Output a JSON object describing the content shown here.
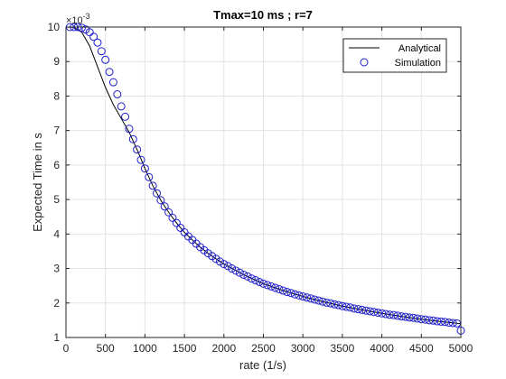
{
  "chart_data": {
    "type": "line",
    "title": "Tmax=10 ms ; r=7",
    "xlabel": "rate (1/s)",
    "ylabel": "Expected Time in s",
    "y_exponent_base": "×10",
    "y_exponent_power": "-3",
    "xlim": [
      0,
      5000
    ],
    "ylim": [
      1,
      10
    ],
    "x_ticks": [
      0,
      500,
      1000,
      1500,
      2000,
      2500,
      3000,
      3500,
      4000,
      4500,
      5000
    ],
    "y_ticks": [
      1,
      2,
      3,
      4,
      5,
      6,
      7,
      8,
      9,
      10
    ],
    "grid": true,
    "legend_position": "top-right",
    "series": [
      {
        "name": "Analytical",
        "kind": "line",
        "color": "#000000",
        "points": [
          [
            0,
            10.0
          ],
          [
            100,
            9.99
          ],
          [
            200,
            9.85
          ],
          [
            300,
            9.45
          ],
          [
            400,
            8.85
          ],
          [
            500,
            8.25
          ],
          [
            600,
            7.75
          ],
          [
            700,
            7.35
          ],
          [
            800,
            6.95
          ],
          [
            900,
            6.45
          ],
          [
            1000,
            5.9
          ],
          [
            1100,
            5.4
          ],
          [
            1200,
            4.98
          ],
          [
            1300,
            4.63
          ],
          [
            1400,
            4.32
          ],
          [
            1500,
            4.05
          ],
          [
            1600,
            3.83
          ],
          [
            1700,
            3.62
          ],
          [
            1800,
            3.44
          ],
          [
            1900,
            3.28
          ],
          [
            2000,
            3.13
          ],
          [
            2250,
            2.82
          ],
          [
            2500,
            2.56
          ],
          [
            2750,
            2.36
          ],
          [
            3000,
            2.19
          ],
          [
            3250,
            2.04
          ],
          [
            3500,
            1.91
          ],
          [
            3750,
            1.8
          ],
          [
            4000,
            1.7
          ],
          [
            4250,
            1.61
          ],
          [
            4500,
            1.53
          ],
          [
            4750,
            1.46
          ],
          [
            5000,
            1.4
          ]
        ]
      },
      {
        "name": "Simulation",
        "kind": "scatter",
        "color": "#1f1fcc",
        "points": [
          [
            50,
            10.0
          ],
          [
            100,
            10.0
          ],
          [
            150,
            10.0
          ],
          [
            200,
            9.98
          ],
          [
            250,
            9.93
          ],
          [
            300,
            9.85
          ],
          [
            350,
            9.72
          ],
          [
            400,
            9.55
          ],
          [
            450,
            9.3
          ],
          [
            500,
            9.05
          ],
          [
            550,
            8.7
          ],
          [
            600,
            8.4
          ],
          [
            650,
            8.05
          ],
          [
            700,
            7.7
          ],
          [
            750,
            7.4
          ],
          [
            800,
            7.05
          ],
          [
            850,
            6.75
          ],
          [
            900,
            6.45
          ],
          [
            950,
            6.15
          ],
          [
            1000,
            5.9
          ],
          [
            1050,
            5.65
          ],
          [
            1100,
            5.4
          ],
          [
            1150,
            5.18
          ],
          [
            1200,
            4.98
          ],
          [
            1250,
            4.8
          ],
          [
            1300,
            4.63
          ],
          [
            1350,
            4.47
          ],
          [
            1400,
            4.32
          ],
          [
            1450,
            4.18
          ],
          [
            1500,
            4.05
          ],
          [
            1550,
            3.93
          ],
          [
            1600,
            3.83
          ],
          [
            1650,
            3.72
          ],
          [
            1700,
            3.62
          ],
          [
            1750,
            3.53
          ],
          [
            1800,
            3.44
          ],
          [
            1850,
            3.36
          ],
          [
            1900,
            3.28
          ],
          [
            1950,
            3.2
          ],
          [
            2000,
            3.13
          ],
          [
            2050,
            3.07
          ],
          [
            2100,
            3.0
          ],
          [
            2150,
            2.94
          ],
          [
            2200,
            2.88
          ],
          [
            2250,
            2.82
          ],
          [
            2300,
            2.77
          ],
          [
            2350,
            2.71
          ],
          [
            2400,
            2.66
          ],
          [
            2450,
            2.61
          ],
          [
            2500,
            2.56
          ],
          [
            2550,
            2.52
          ],
          [
            2600,
            2.48
          ],
          [
            2650,
            2.44
          ],
          [
            2700,
            2.4
          ],
          [
            2750,
            2.36
          ],
          [
            2800,
            2.32
          ],
          [
            2850,
            2.29
          ],
          [
            2900,
            2.25
          ],
          [
            2950,
            2.22
          ],
          [
            3000,
            2.19
          ],
          [
            3050,
            2.16
          ],
          [
            3100,
            2.13
          ],
          [
            3150,
            2.1
          ],
          [
            3200,
            2.07
          ],
          [
            3250,
            2.04
          ],
          [
            3300,
            2.01
          ],
          [
            3350,
            1.99
          ],
          [
            3400,
            1.96
          ],
          [
            3450,
            1.94
          ],
          [
            3500,
            1.91
          ],
          [
            3550,
            1.89
          ],
          [
            3600,
            1.87
          ],
          [
            3650,
            1.84
          ],
          [
            3700,
            1.82
          ],
          [
            3750,
            1.8
          ],
          [
            3800,
            1.78
          ],
          [
            3850,
            1.76
          ],
          [
            3900,
            1.74
          ],
          [
            3950,
            1.72
          ],
          [
            4000,
            1.7
          ],
          [
            4050,
            1.68
          ],
          [
            4100,
            1.66
          ],
          [
            4150,
            1.65
          ],
          [
            4200,
            1.63
          ],
          [
            4250,
            1.61
          ],
          [
            4300,
            1.6
          ],
          [
            4350,
            1.58
          ],
          [
            4400,
            1.57
          ],
          [
            4450,
            1.55
          ],
          [
            4500,
            1.53
          ],
          [
            4550,
            1.52
          ],
          [
            4600,
            1.5
          ],
          [
            4650,
            1.49
          ],
          [
            4700,
            1.47
          ],
          [
            4750,
            1.46
          ],
          [
            4800,
            1.45
          ],
          [
            4850,
            1.43
          ],
          [
            4900,
            1.42
          ],
          [
            4950,
            1.41
          ],
          [
            5000,
            1.2
          ]
        ]
      }
    ]
  }
}
